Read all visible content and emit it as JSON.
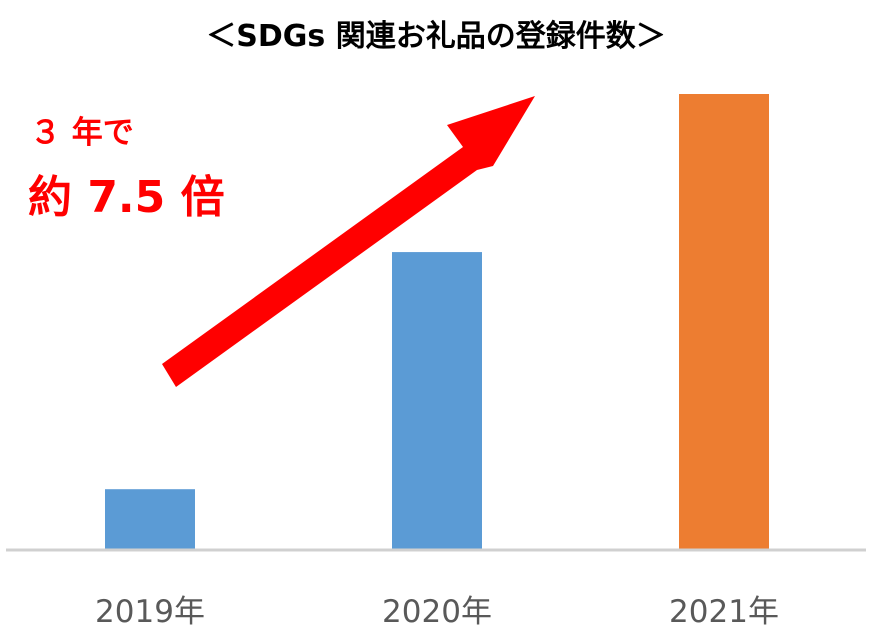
{
  "chart_data": {
    "type": "bar",
    "title": "＜SDGs 関連お礼品の登録件数＞",
    "categories": [
      "2019年",
      "2020年",
      "2021年"
    ],
    "values": [
      1,
      4.9,
      7.5
    ],
    "value_unit": "relative to 2019",
    "ylim": [
      0,
      7.5
    ],
    "grid": false,
    "xlabel": "",
    "ylabel": "",
    "colors": [
      "#5B9BD5",
      "#5B9BD5",
      "#ED7D31"
    ],
    "axis_color": "#D0D0D0",
    "annotation": {
      "line1": "３ 年で",
      "line2": "約 7.5 倍",
      "color": "#FF0000"
    },
    "arrow_color": "#FF0000"
  }
}
